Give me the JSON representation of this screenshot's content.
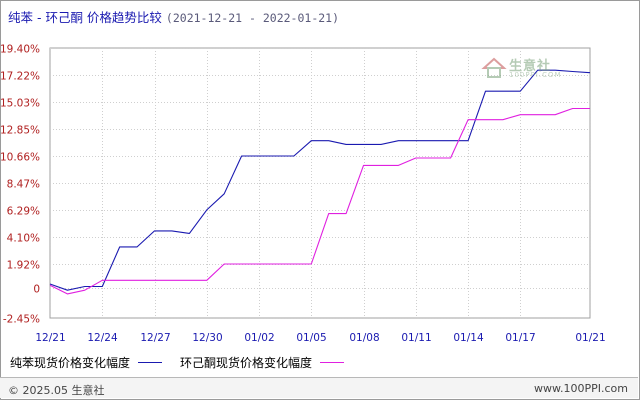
{
  "title": {
    "main": "纯苯 - 环己酮 价格趋势比较",
    "range": "(2021-12-21 - 2022-01-21)"
  },
  "watermark": {
    "text": "生意社",
    "sub": "100PPI.COM",
    "icon": "house-logo-icon"
  },
  "legend": [
    {
      "label": "纯苯现货价格变化幅度",
      "color": "#1a1ab0"
    },
    {
      "label": "环己酮现货价格变化幅度",
      "color": "#e020e0"
    }
  ],
  "footer": {
    "copyright": "© 2025.05 生意社",
    "site": "www.100PPI.com"
  },
  "chart_data": {
    "type": "line",
    "title": "纯苯 - 环己酮 价格趋势比较",
    "xlabel": "",
    "ylabel": "",
    "ylim": [
      -2.45,
      19.4
    ],
    "y_ticks": [
      19.4,
      17.22,
      15.03,
      12.85,
      10.66,
      8.47,
      6.29,
      4.1,
      1.92,
      0,
      -2.45
    ],
    "y_tick_labels": [
      "19.40%",
      "17.22%",
      "15.03%",
      "12.85%",
      "10.66%",
      "8.47%",
      "6.29%",
      "4.10%",
      "1.92%",
      "0",
      "-2.45%"
    ],
    "xlim": [
      0,
      31
    ],
    "x_tick_positions": [
      0,
      3,
      6,
      9,
      12,
      15,
      18,
      21,
      24,
      27,
      31
    ],
    "x_tick_labels": [
      "12/21",
      "12/24",
      "12/27",
      "12/30",
      "01/02",
      "01/05",
      "01/08",
      "01/11",
      "01/14",
      "01/17",
      "01/21"
    ],
    "grid": true,
    "legend_position": "bottom",
    "series": [
      {
        "name": "纯苯现货价格变化幅度",
        "color": "#1a1ab0",
        "x": [
          0,
          1,
          2,
          3,
          4,
          5,
          6,
          7,
          8,
          9,
          10,
          11,
          12,
          13,
          14,
          15,
          16,
          17,
          18,
          19,
          20,
          21,
          22,
          23,
          24,
          25,
          26,
          27,
          28,
          29,
          30,
          31
        ],
        "y": [
          0.3,
          -0.2,
          0.1,
          0.1,
          3.3,
          3.3,
          4.6,
          4.6,
          4.4,
          6.3,
          7.6,
          10.66,
          10.66,
          10.66,
          10.66,
          11.9,
          11.9,
          11.6,
          11.6,
          11.6,
          11.9,
          11.9,
          11.9,
          11.9,
          11.9,
          15.9,
          15.9,
          15.9,
          17.6,
          17.6,
          17.5,
          17.4
        ]
      },
      {
        "name": "环己酮现货价格变化幅度",
        "color": "#e020e0",
        "x": [
          0,
          1,
          2,
          3,
          4,
          5,
          6,
          7,
          8,
          9,
          10,
          11,
          12,
          13,
          14,
          15,
          16,
          17,
          18,
          19,
          20,
          21,
          22,
          23,
          24,
          25,
          26,
          27,
          28,
          29,
          30,
          31
        ],
        "y": [
          0.2,
          -0.5,
          -0.2,
          0.6,
          0.6,
          0.6,
          0.6,
          0.6,
          0.6,
          0.6,
          1.92,
          1.92,
          1.92,
          1.92,
          1.92,
          1.92,
          6.0,
          6.0,
          9.9,
          9.9,
          9.9,
          10.5,
          10.5,
          10.5,
          13.6,
          13.6,
          13.6,
          14.0,
          14.0,
          14.0,
          14.5,
          14.5
        ]
      }
    ]
  }
}
